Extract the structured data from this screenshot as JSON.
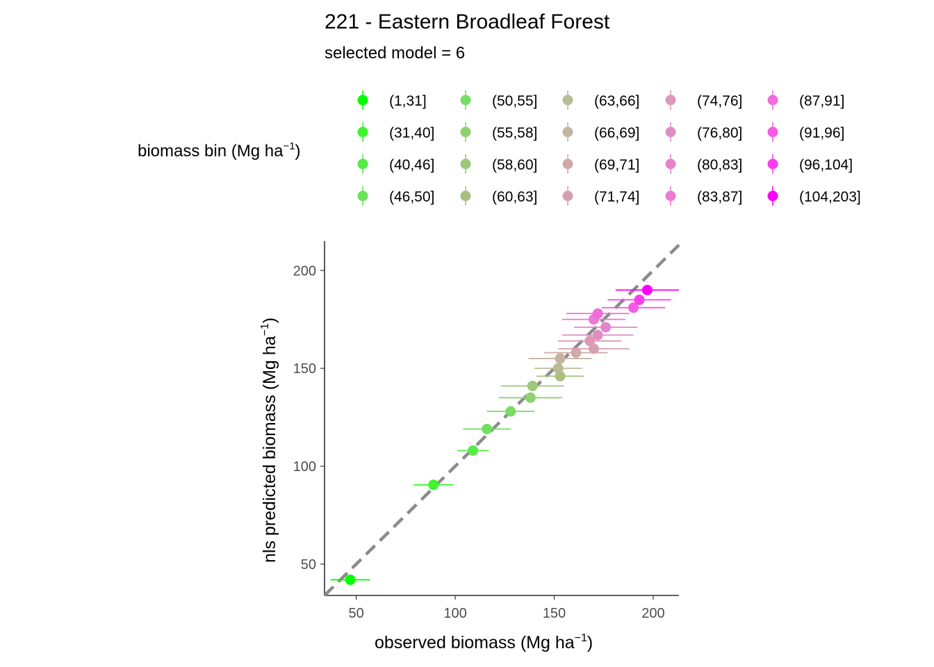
{
  "chart_data": {
    "type": "scatter",
    "title": "221 - Eastern Broadleaf Forest",
    "subtitle": "selected model = 6",
    "xlabel": "observed biomass (Mg ha",
    "ylabel": "nls predicted biomass (Mg ha",
    "axis_unit_exponent": "−1",
    "axis_unit_close": ")",
    "legend_title": "biomass bin (Mg ha",
    "legend_placement": "top",
    "xlim": [
      34,
      213
    ],
    "ylim": [
      34,
      215
    ],
    "x_ticks": [
      50,
      100,
      150,
      200
    ],
    "y_ticks": [
      50,
      100,
      150,
      200
    ],
    "grid": false,
    "reference_line": {
      "type": "1:1",
      "style": "dashed",
      "color": "#7f7f7f"
    },
    "series": [
      {
        "name": "(1,31]",
        "color": "#00ff00",
        "points": [
          {
            "x": 47,
            "y": 42,
            "xerr": 5
          }
        ]
      },
      {
        "name": "(31,40]",
        "color": "#3ef52e",
        "points": [
          {
            "x": 89,
            "y": 90.5,
            "xerr": 5
          }
        ]
      },
      {
        "name": "(40,46]",
        "color": "#55ea47",
        "points": [
          {
            "x": 109,
            "y": 108,
            "xerr": 4
          }
        ]
      },
      {
        "name": "(46,50]",
        "color": "#6be25a",
        "points": [
          {
            "x": 116,
            "y": 119,
            "xerr": 6
          }
        ]
      },
      {
        "name": "(50,55]",
        "color": "#79dc64",
        "points": [
          {
            "x": 128,
            "y": 128,
            "xerr": 6
          }
        ]
      },
      {
        "name": "(55,58]",
        "color": "#8fd06f",
        "points": [
          {
            "x": 138,
            "y": 135,
            "xerr": 8
          }
        ]
      },
      {
        "name": "(58,60]",
        "color": "#9bc87a",
        "points": [
          {
            "x": 139,
            "y": 141,
            "xerr": 8
          }
        ]
      },
      {
        "name": "(60,63]",
        "color": "#a8c082",
        "points": [
          {
            "x": 153,
            "y": 146,
            "xerr": 6
          }
        ]
      },
      {
        "name": "(63,66]",
        "color": "#b8bd96",
        "points": [
          {
            "x": 152,
            "y": 150,
            "xerr": 6
          }
        ]
      },
      {
        "name": "(66,69]",
        "color": "#c4b4a1",
        "points": [
          {
            "x": 153,
            "y": 155,
            "xerr": 8
          }
        ]
      },
      {
        "name": "(69,71]",
        "color": "#cfaaa7",
        "points": [
          {
            "x": 161,
            "y": 158,
            "xerr": 8
          }
        ]
      },
      {
        "name": "(71,74]",
        "color": "#d6a0b0",
        "points": [
          {
            "x": 170,
            "y": 160,
            "xerr": 9
          }
        ]
      },
      {
        "name": "(74,76]",
        "color": "#dc99b8",
        "points": [
          {
            "x": 168,
            "y": 164,
            "xerr": 8
          }
        ]
      },
      {
        "name": "(76,80]",
        "color": "#e08ec2",
        "points": [
          {
            "x": 172,
            "y": 167,
            "xerr": 9
          }
        ]
      },
      {
        "name": "(80,83]",
        "color": "#e584cc",
        "points": [
          {
            "x": 176,
            "y": 171,
            "xerr": 8
          }
        ]
      },
      {
        "name": "(83,87]",
        "color": "#ea7ad4",
        "points": [
          {
            "x": 170,
            "y": 175,
            "xerr": 8
          }
        ]
      },
      {
        "name": "(87,91]",
        "color": "#f06cdd",
        "points": [
          {
            "x": 172,
            "y": 178,
            "xerr": 8
          }
        ]
      },
      {
        "name": "(91,96]",
        "color": "#f55ae5",
        "points": [
          {
            "x": 190,
            "y": 181,
            "xerr": 8
          }
        ]
      },
      {
        "name": "(96,104]",
        "color": "#fa3df0",
        "points": [
          {
            "x": 193,
            "y": 185,
            "xerr": 8
          }
        ]
      },
      {
        "name": "(104,203]",
        "color": "#ff00ff",
        "points": [
          {
            "x": 197,
            "y": 190,
            "xerr": 8
          }
        ]
      }
    ]
  }
}
